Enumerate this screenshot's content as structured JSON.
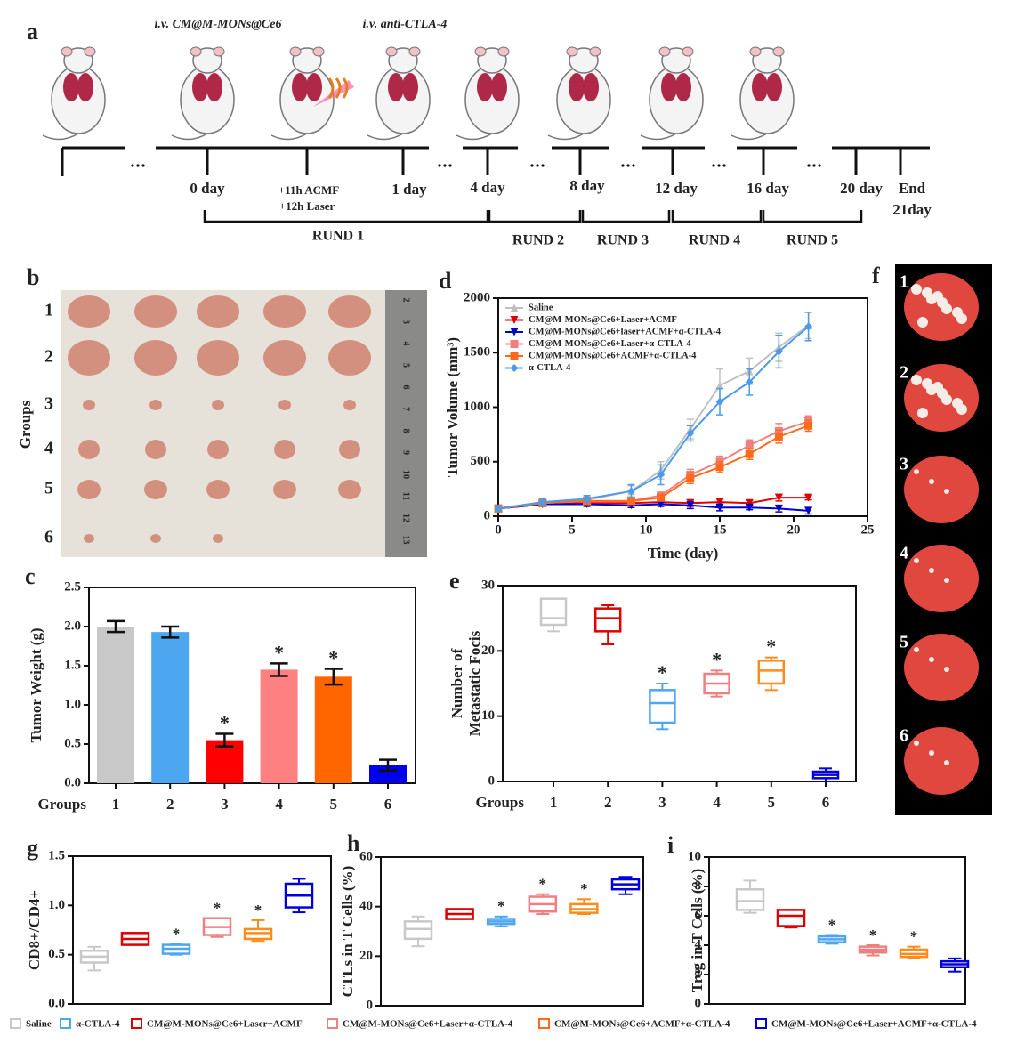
{
  "panel_a": {
    "label": "a",
    "annotations": [
      "i.v. CM@M-MONs@Ce6",
      "i.v. anti-CTLA-4"
    ],
    "time_labels": [
      "0 day",
      "+11h ACMF",
      "+12h Laser",
      "1 day",
      "4 day",
      "8 day",
      "12 day",
      "16 day",
      "20 day",
      "End",
      "21day"
    ],
    "rounds": [
      "RUND 1",
      "RUND 2",
      "RUND 3",
      "RUND 4",
      "RUND 5"
    ]
  },
  "panel_b": {
    "label": "b",
    "axis_label": "Groups",
    "rows": [
      "1",
      "2",
      "3",
      "4",
      "5",
      "6"
    ],
    "ruler_labels": [
      "2",
      "3",
      "4",
      "5",
      "6",
      "7",
      "8",
      "9",
      "10",
      "11",
      "12",
      "13"
    ]
  },
  "panel_f": {
    "label": "f",
    "rows": [
      "1",
      "2",
      "3",
      "4",
      "5",
      "6"
    ]
  },
  "legend": {
    "entries": [
      {
        "name": "Saline",
        "color": "#c8c8c8"
      },
      {
        "name": "α-CTLA-4",
        "color": "#4da6f0"
      },
      {
        "name": "CM@M-MONs@Ce6+Laser+ACMF",
        "color": "#e00000"
      },
      {
        "name": "CM@M-MONs@Ce6+Laser+α-CTLA-4",
        "color": "#f08080"
      },
      {
        "name": "CM@M-MONs@Ce6+ACMF+α-CTLA-4",
        "color": "#ff6a1a"
      },
      {
        "name": "CM@M-MONs@Ce6+Laser+ACMF+α-CTLA-4",
        "color": "#0000dd"
      }
    ]
  },
  "chart_data": [
    {
      "type": "bar",
      "label": "c",
      "xlabel": "Groups",
      "ylabel": "Tumor Weight (g)",
      "categories": [
        "1",
        "2",
        "3",
        "4",
        "5",
        "6"
      ],
      "values": [
        2.0,
        1.93,
        0.55,
        1.45,
        1.36,
        0.23
      ],
      "errors": [
        0.07,
        0.07,
        0.08,
        0.08,
        0.1,
        0.07
      ],
      "colors": [
        "#c8c8c8",
        "#4da6f0",
        "#ff0000",
        "#ff8080",
        "#ff6600",
        "#0000ee"
      ],
      "significant": [
        false,
        false,
        true,
        true,
        true,
        false
      ],
      "significance_label": "*",
      "ylim": [
        0,
        2.5
      ],
      "yticks": [
        {
          "value": 0,
          "label": "0.0"
        },
        0.5,
        {
          "value": 1,
          "label": "1.0"
        },
        1.5,
        {
          "value": 2,
          "label": "2.0"
        },
        2.5
      ]
    },
    {
      "type": "line",
      "label": "d",
      "xlabel": "Time (day)",
      "ylabel": "Tumor Volume (mm³)",
      "x": [
        0,
        3,
        6,
        9,
        11,
        13,
        15,
        17,
        19,
        21
      ],
      "xlim": [
        0,
        25
      ],
      "xticks": [
        0,
        5,
        10,
        15,
        20,
        25
      ],
      "ylim": [
        0,
        2000
      ],
      "yticks": [
        0,
        500,
        1000,
        1500,
        2000
      ],
      "series": [
        {
          "name": "Saline",
          "color": "#c0c0c0",
          "marker": "triangle-up",
          "values": [
            70,
            130,
            150,
            230,
            420,
            800,
            1200,
            1330,
            1550,
            1750
          ],
          "errors": [
            20,
            30,
            30,
            50,
            80,
            90,
            150,
            120,
            130,
            120
          ]
        },
        {
          "name": "CM@M-MONs@Ce6+Laser+ACMF",
          "color": "#e00000",
          "marker": "triangle-down",
          "values": [
            70,
            110,
            120,
            120,
            130,
            120,
            130,
            120,
            170,
            170
          ],
          "errors": [
            15,
            20,
            20,
            20,
            20,
            30,
            30,
            25,
            30,
            20
          ]
        },
        {
          "name": "CM@M-MONs@Ce6+laser+ACMF+α-CTLA-4",
          "color": "#0000cc",
          "marker": "triangle-down",
          "values": [
            70,
            110,
            110,
            100,
            110,
            100,
            80,
            80,
            70,
            50
          ],
          "errors": [
            15,
            20,
            20,
            20,
            20,
            30,
            30,
            20,
            30,
            30
          ]
        },
        {
          "name": "CM@M-MONs@Ce6+Laser+α-CTLA-4",
          "color": "#f08080",
          "marker": "square",
          "values": [
            70,
            120,
            140,
            140,
            190,
            380,
            500,
            650,
            780,
            870
          ],
          "errors": [
            15,
            20,
            20,
            20,
            30,
            50,
            50,
            50,
            70,
            50
          ]
        },
        {
          "name": "CM@M-MONs@Ce6+ACMF+α-CTLA-4",
          "color": "#ff6a1a",
          "marker": "square",
          "values": [
            70,
            120,
            140,
            140,
            170,
            350,
            450,
            570,
            730,
            830
          ],
          "errors": [
            15,
            20,
            20,
            20,
            30,
            50,
            50,
            50,
            60,
            50
          ]
        },
        {
          "name": "α-CTLA-4",
          "color": "#4d9be6",
          "marker": "diamond",
          "values": [
            70,
            130,
            160,
            230,
            380,
            760,
            1050,
            1230,
            1510,
            1740
          ],
          "errors": [
            20,
            30,
            30,
            60,
            90,
            70,
            120,
            120,
            150,
            130
          ]
        }
      ]
    },
    {
      "type": "box",
      "label": "e",
      "xlabel": "Groups",
      "ylabel": [
        "Number of",
        "Metastatic Focis"
      ],
      "categories": [
        "1",
        "2",
        "3",
        "4",
        "5",
        "6"
      ],
      "min": [
        23,
        21,
        8,
        13,
        14,
        0
      ],
      "q1": [
        24,
        23,
        9,
        13.5,
        15,
        0.5
      ],
      "median": [
        25,
        25,
        12,
        15,
        17,
        1
      ],
      "q3": [
        28,
        26.5,
        14,
        16.5,
        18.5,
        1.5
      ],
      "max": [
        28,
        27,
        15,
        17,
        19,
        2
      ],
      "colors": [
        "#c8c8c8",
        "#e00000",
        "#4da6f0",
        "#f08080",
        "#ff8c1a",
        "#0000dd"
      ],
      "significant": [
        false,
        false,
        true,
        true,
        true,
        false
      ],
      "significance_label": "*",
      "ylim": [
        0,
        30
      ],
      "yticks": [
        0,
        10,
        20,
        30
      ]
    },
    {
      "type": "box",
      "label": "g",
      "ylabel": "CD8+/CD4+",
      "min": [
        0.34,
        0.6,
        0.5,
        0.68,
        0.64,
        0.93
      ],
      "q1": [
        0.42,
        0.6,
        0.51,
        0.7,
        0.66,
        0.98
      ],
      "median": [
        0.48,
        0.66,
        0.56,
        0.78,
        0.72,
        1.1
      ],
      "q3": [
        0.54,
        0.72,
        0.6,
        0.87,
        0.76,
        1.22
      ],
      "max": [
        0.58,
        0.72,
        0.61,
        0.87,
        0.85,
        1.27
      ],
      "colors": [
        "#c8c8c8",
        "#e00000",
        "#4da6f0",
        "#f08080",
        "#ff8c1a",
        "#0000dd"
      ],
      "significant": [
        false,
        false,
        true,
        true,
        true,
        false
      ],
      "significance_label": "*",
      "ylim": [
        0,
        1.5
      ],
      "yticks": [
        {
          "value": 0,
          "label": "0.0"
        },
        0.5,
        {
          "value": 1,
          "label": "1.0"
        },
        1.5
      ]
    },
    {
      "type": "box",
      "label": "h",
      "ylabel": "CTLs in T Cells (%)",
      "min": [
        24,
        35,
        32,
        37,
        37,
        45
      ],
      "q1": [
        27,
        35,
        33,
        38,
        37.5,
        47
      ],
      "median": [
        31,
        37,
        34,
        41,
        39,
        49
      ],
      "q3": [
        34,
        39,
        35,
        44,
        41,
        51
      ],
      "max": [
        36,
        39,
        36,
        45,
        43,
        52
      ],
      "colors": [
        "#c8c8c8",
        "#e00000",
        "#4da6f0",
        "#f08080",
        "#ff8c1a",
        "#0000dd"
      ],
      "significant": [
        false,
        false,
        true,
        true,
        true,
        false
      ],
      "significance_label": "*",
      "ylim": [
        0,
        60
      ],
      "yticks": [
        0,
        20,
        40,
        60
      ]
    },
    {
      "type": "box",
      "label": "i",
      "ylabel": "Treg in T Cells (%)",
      "min": [
        6.2,
        5.2,
        4.1,
        3.3,
        3.1,
        2.2
      ],
      "q1": [
        6.4,
        5.3,
        4.2,
        3.5,
        3.2,
        2.5
      ],
      "median": [
        7,
        6,
        4.4,
        3.7,
        3.4,
        2.7
      ],
      "q3": [
        7.8,
        6.4,
        4.6,
        3.9,
        3.7,
        2.9
      ],
      "max": [
        8.4,
        6.4,
        4.7,
        4,
        3.9,
        3.1
      ],
      "colors": [
        "#c8c8c8",
        "#e00000",
        "#4da6f0",
        "#f08080",
        "#ff8c1a",
        "#0000dd"
      ],
      "significant": [
        false,
        false,
        true,
        true,
        true,
        false
      ],
      "significance_label": "*",
      "ylim": [
        0,
        10
      ],
      "yticks": [
        0,
        2,
        4,
        6,
        8,
        10
      ]
    }
  ]
}
